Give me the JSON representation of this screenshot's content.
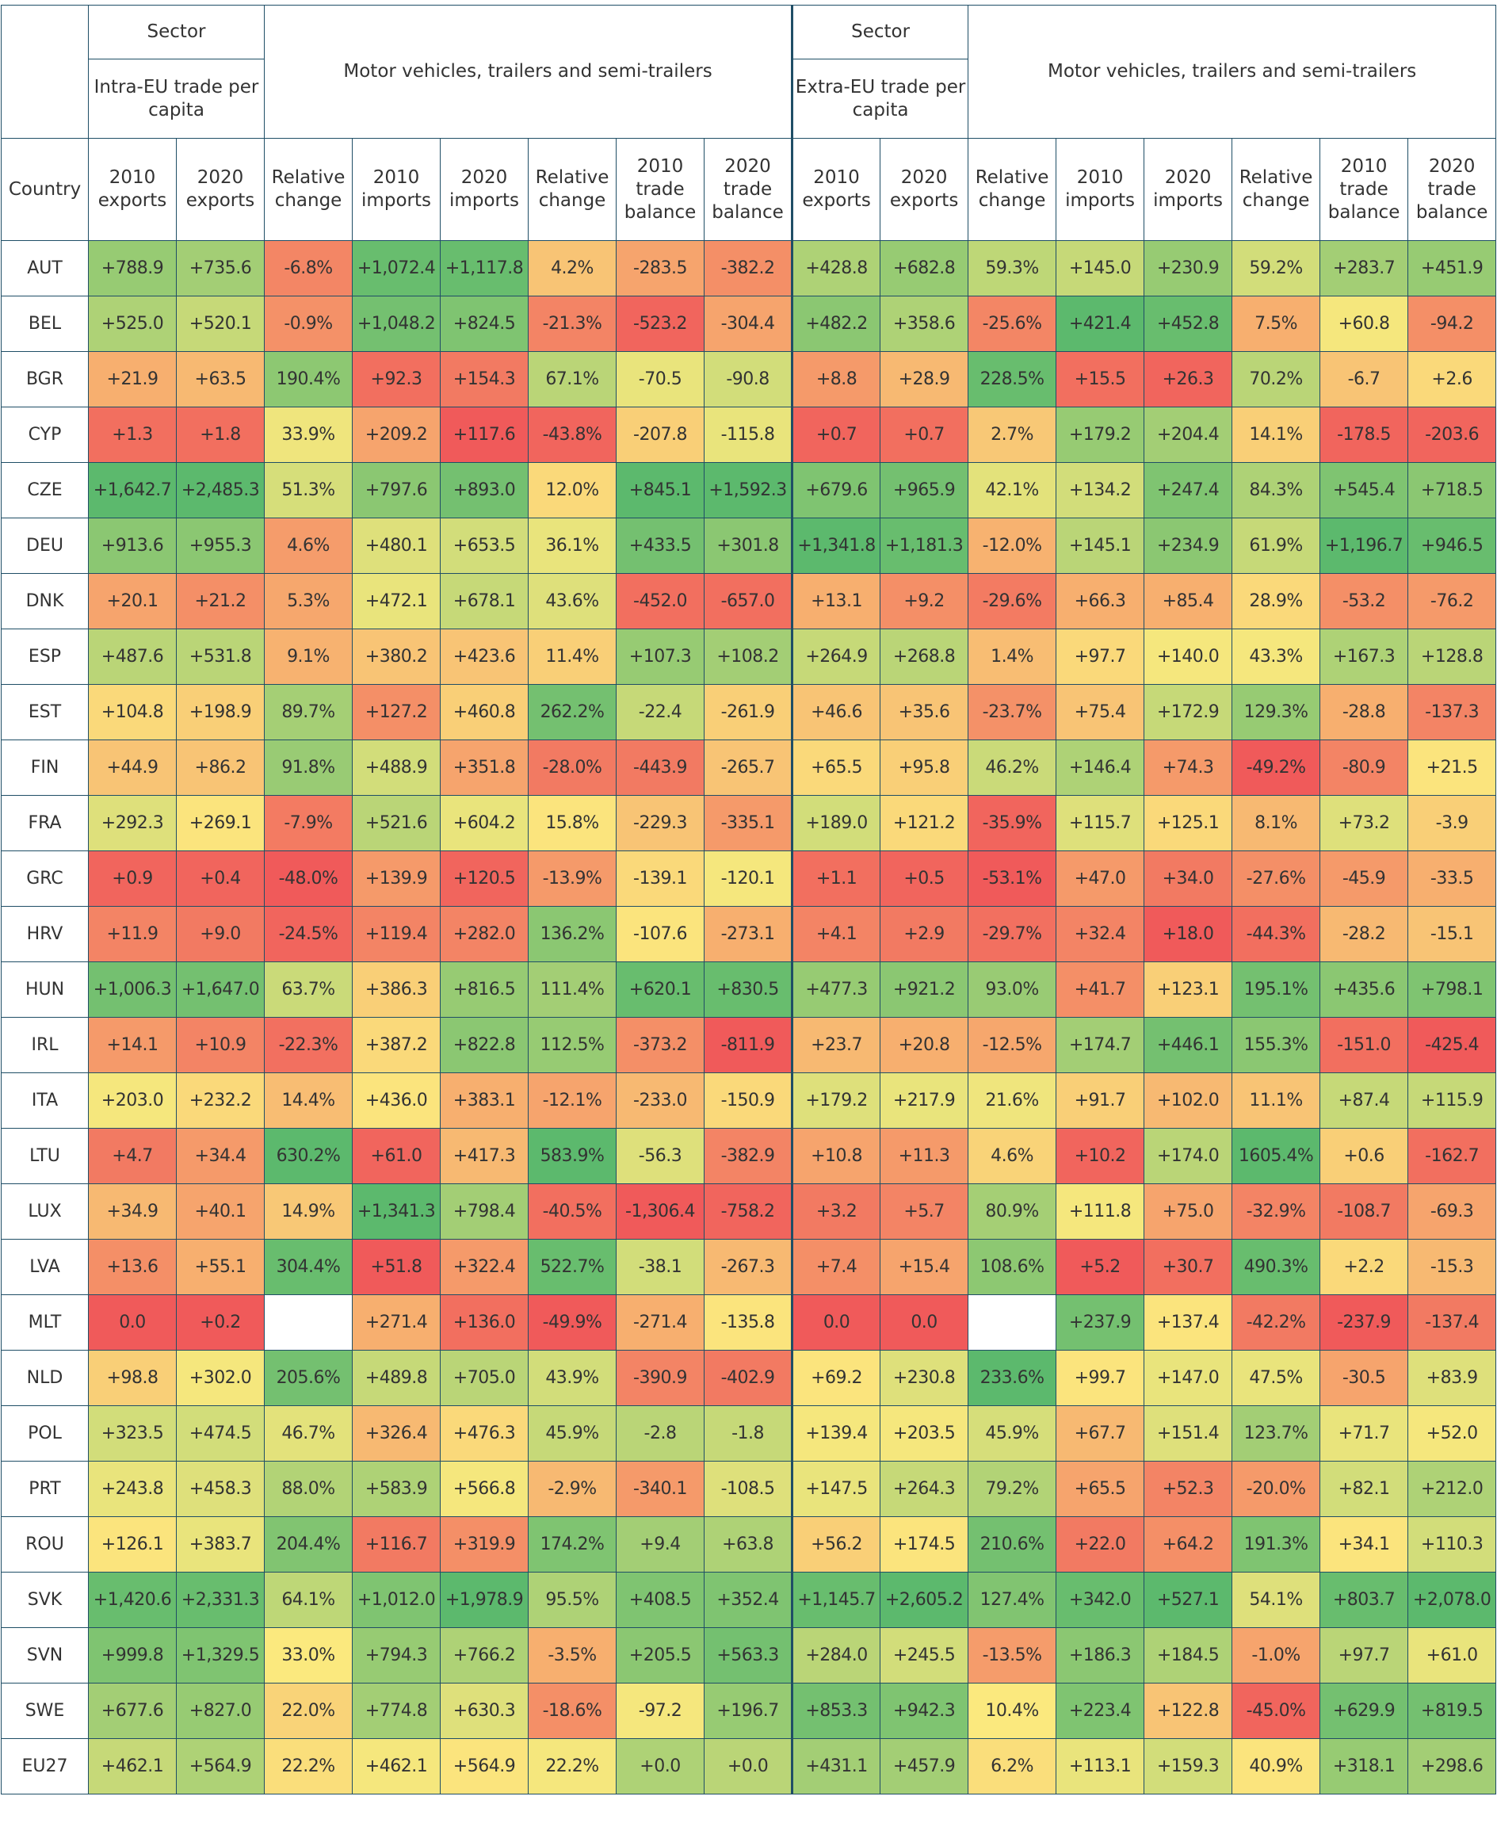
{
  "header": {
    "sector_label": "Sector",
    "intra_group_label": "Intra-EU trade per capita",
    "extra_group_label": "Extra-EU trade per capita",
    "industry_label": "Motor vehicles, trailers and semi-trailers",
    "columns": {
      "country": "Country",
      "exp2010": "2010 exports",
      "exp2020": "2020 exports",
      "rel_change": "Relative change",
      "imp2010": "2010 imports",
      "imp2020": "2020 imports",
      "bal2010": "2010 trade balance",
      "bal2020": "2020 trade balance"
    }
  },
  "rows": [
    {
      "country": "AUT",
      "intra": [
        "+788.9",
        "+735.6",
        "-6.8%",
        "+1,072.4",
        "+1,117.8",
        "4.2%",
        "-283.5",
        "-382.2"
      ],
      "extra": [
        "+428.8",
        "+682.8",
        "59.3%",
        "+145.0",
        "+230.9",
        "59.2%",
        "+283.7",
        "+451.9"
      ]
    },
    {
      "country": "BEL",
      "intra": [
        "+525.0",
        "+520.1",
        "-0.9%",
        "+1,048.2",
        "+824.5",
        "-21.3%",
        "-523.2",
        "-304.4"
      ],
      "extra": [
        "+482.2",
        "+358.6",
        "-25.6%",
        "+421.4",
        "+452.8",
        "7.5%",
        "+60.8",
        "-94.2"
      ]
    },
    {
      "country": "BGR",
      "intra": [
        "+21.9",
        "+63.5",
        "190.4%",
        "+92.3",
        "+154.3",
        "67.1%",
        "-70.5",
        "-90.8"
      ],
      "extra": [
        "+8.8",
        "+28.9",
        "228.5%",
        "+15.5",
        "+26.3",
        "70.2%",
        "-6.7",
        "+2.6"
      ]
    },
    {
      "country": "CYP",
      "intra": [
        "+1.3",
        "+1.8",
        "33.9%",
        "+209.2",
        "+117.6",
        "-43.8%",
        "-207.8",
        "-115.8"
      ],
      "extra": [
        "+0.7",
        "+0.7",
        "2.7%",
        "+179.2",
        "+204.4",
        "14.1%",
        "-178.5",
        "-203.6"
      ]
    },
    {
      "country": "CZE",
      "intra": [
        "+1,642.7",
        "+2,485.3",
        "51.3%",
        "+797.6",
        "+893.0",
        "12.0%",
        "+845.1",
        "+1,592.3"
      ],
      "extra": [
        "+679.6",
        "+965.9",
        "42.1%",
        "+134.2",
        "+247.4",
        "84.3%",
        "+545.4",
        "+718.5"
      ]
    },
    {
      "country": "DEU",
      "intra": [
        "+913.6",
        "+955.3",
        "4.6%",
        "+480.1",
        "+653.5",
        "36.1%",
        "+433.5",
        "+301.8"
      ],
      "extra": [
        "+1,341.8",
        "+1,181.3",
        "-12.0%",
        "+145.1",
        "+234.9",
        "61.9%",
        "+1,196.7",
        "+946.5"
      ]
    },
    {
      "country": "DNK",
      "intra": [
        "+20.1",
        "+21.2",
        "5.3%",
        "+472.1",
        "+678.1",
        "43.6%",
        "-452.0",
        "-657.0"
      ],
      "extra": [
        "+13.1",
        "+9.2",
        "-29.6%",
        "+66.3",
        "+85.4",
        "28.9%",
        "-53.2",
        "-76.2"
      ]
    },
    {
      "country": "ESP",
      "intra": [
        "+487.6",
        "+531.8",
        "9.1%",
        "+380.2",
        "+423.6",
        "11.4%",
        "+107.3",
        "+108.2"
      ],
      "extra": [
        "+264.9",
        "+268.8",
        "1.4%",
        "+97.7",
        "+140.0",
        "43.3%",
        "+167.3",
        "+128.8"
      ]
    },
    {
      "country": "EST",
      "intra": [
        "+104.8",
        "+198.9",
        "89.7%",
        "+127.2",
        "+460.8",
        "262.2%",
        "-22.4",
        "-261.9"
      ],
      "extra": [
        "+46.6",
        "+35.6",
        "-23.7%",
        "+75.4",
        "+172.9",
        "129.3%",
        "-28.8",
        "-137.3"
      ]
    },
    {
      "country": "FIN",
      "intra": [
        "+44.9",
        "+86.2",
        "91.8%",
        "+488.9",
        "+351.8",
        "-28.0%",
        "-443.9",
        "-265.7"
      ],
      "extra": [
        "+65.5",
        "+95.8",
        "46.2%",
        "+146.4",
        "+74.3",
        "-49.2%",
        "-80.9",
        "+21.5"
      ]
    },
    {
      "country": "FRA",
      "intra": [
        "+292.3",
        "+269.1",
        "-7.9%",
        "+521.6",
        "+604.2",
        "15.8%",
        "-229.3",
        "-335.1"
      ],
      "extra": [
        "+189.0",
        "+121.2",
        "-35.9%",
        "+115.7",
        "+125.1",
        "8.1%",
        "+73.2",
        "-3.9"
      ]
    },
    {
      "country": "GRC",
      "intra": [
        "+0.9",
        "+0.4",
        "-48.0%",
        "+139.9",
        "+120.5",
        "-13.9%",
        "-139.1",
        "-120.1"
      ],
      "extra": [
        "+1.1",
        "+0.5",
        "-53.1%",
        "+47.0",
        "+34.0",
        "-27.6%",
        "-45.9",
        "-33.5"
      ]
    },
    {
      "country": "HRV",
      "intra": [
        "+11.9",
        "+9.0",
        "-24.5%",
        "+119.4",
        "+282.0",
        "136.2%",
        "-107.6",
        "-273.1"
      ],
      "extra": [
        "+4.1",
        "+2.9",
        "-29.7%",
        "+32.4",
        "+18.0",
        "-44.3%",
        "-28.2",
        "-15.1"
      ]
    },
    {
      "country": "HUN",
      "intra": [
        "+1,006.3",
        "+1,647.0",
        "63.7%",
        "+386.3",
        "+816.5",
        "111.4%",
        "+620.1",
        "+830.5"
      ],
      "extra": [
        "+477.3",
        "+921.2",
        "93.0%",
        "+41.7",
        "+123.1",
        "195.1%",
        "+435.6",
        "+798.1"
      ]
    },
    {
      "country": "IRL",
      "intra": [
        "+14.1",
        "+10.9",
        "-22.3%",
        "+387.2",
        "+822.8",
        "112.5%",
        "-373.2",
        "-811.9"
      ],
      "extra": [
        "+23.7",
        "+20.8",
        "-12.5%",
        "+174.7",
        "+446.1",
        "155.3%",
        "-151.0",
        "-425.4"
      ]
    },
    {
      "country": "ITA",
      "intra": [
        "+203.0",
        "+232.2",
        "14.4%",
        "+436.0",
        "+383.1",
        "-12.1%",
        "-233.0",
        "-150.9"
      ],
      "extra": [
        "+179.2",
        "+217.9",
        "21.6%",
        "+91.7",
        "+102.0",
        "11.1%",
        "+87.4",
        "+115.9"
      ]
    },
    {
      "country": "LTU",
      "intra": [
        "+4.7",
        "+34.4",
        "630.2%",
        "+61.0",
        "+417.3",
        "583.9%",
        "-56.3",
        "-382.9"
      ],
      "extra": [
        "+10.8",
        "+11.3",
        "4.6%",
        "+10.2",
        "+174.0",
        "1605.4%",
        "+0.6",
        "-162.7"
      ]
    },
    {
      "country": "LUX",
      "intra": [
        "+34.9",
        "+40.1",
        "14.9%",
        "+1,341.3",
        "+798.4",
        "-40.5%",
        "-1,306.4",
        "-758.2"
      ],
      "extra": [
        "+3.2",
        "+5.7",
        "80.9%",
        "+111.8",
        "+75.0",
        "-32.9%",
        "-108.7",
        "-69.3"
      ]
    },
    {
      "country": "LVA",
      "intra": [
        "+13.6",
        "+55.1",
        "304.4%",
        "+51.8",
        "+322.4",
        "522.7%",
        "-38.1",
        "-267.3"
      ],
      "extra": [
        "+7.4",
        "+15.4",
        "108.6%",
        "+5.2",
        "+30.7",
        "490.3%",
        "+2.2",
        "-15.3"
      ]
    },
    {
      "country": "MLT",
      "intra": [
        "0.0",
        "+0.2",
        "",
        "+271.4",
        "+136.0",
        "-49.9%",
        "-271.4",
        "-135.8"
      ],
      "extra": [
        "0.0",
        "0.0",
        "",
        "+237.9",
        "+137.4",
        "-42.2%",
        "-237.9",
        "-137.4"
      ]
    },
    {
      "country": "NLD",
      "intra": [
        "+98.8",
        "+302.0",
        "205.6%",
        "+489.8",
        "+705.0",
        "43.9%",
        "-390.9",
        "-402.9"
      ],
      "extra": [
        "+69.2",
        "+230.8",
        "233.6%",
        "+99.7",
        "+147.0",
        "47.5%",
        "-30.5",
        "+83.9"
      ]
    },
    {
      "country": "POL",
      "intra": [
        "+323.5",
        "+474.5",
        "46.7%",
        "+326.4",
        "+476.3",
        "45.9%",
        "-2.8",
        "-1.8"
      ],
      "extra": [
        "+139.4",
        "+203.5",
        "45.9%",
        "+67.7",
        "+151.4",
        "123.7%",
        "+71.7",
        "+52.0"
      ]
    },
    {
      "country": "PRT",
      "intra": [
        "+243.8",
        "+458.3",
        "88.0%",
        "+583.9",
        "+566.8",
        "-2.9%",
        "-340.1",
        "-108.5"
      ],
      "extra": [
        "+147.5",
        "+264.3",
        "79.2%",
        "+65.5",
        "+52.3",
        "-20.0%",
        "+82.1",
        "+212.0"
      ]
    },
    {
      "country": "ROU",
      "intra": [
        "+126.1",
        "+383.7",
        "204.4%",
        "+116.7",
        "+319.9",
        "174.2%",
        "+9.4",
        "+63.8"
      ],
      "extra": [
        "+56.2",
        "+174.5",
        "210.6%",
        "+22.0",
        "+64.2",
        "191.3%",
        "+34.1",
        "+110.3"
      ]
    },
    {
      "country": "SVK",
      "intra": [
        "+1,420.6",
        "+2,331.3",
        "64.1%",
        "+1,012.0",
        "+1,978.9",
        "95.5%",
        "+408.5",
        "+352.4"
      ],
      "extra": [
        "+1,145.7",
        "+2,605.2",
        "127.4%",
        "+342.0",
        "+527.1",
        "54.1%",
        "+803.7",
        "+2,078.0"
      ]
    },
    {
      "country": "SVN",
      "intra": [
        "+999.8",
        "+1,329.5",
        "33.0%",
        "+794.3",
        "+766.2",
        "-3.5%",
        "+205.5",
        "+563.3"
      ],
      "extra": [
        "+284.0",
        "+245.5",
        "-13.5%",
        "+186.3",
        "+184.5",
        "-1.0%",
        "+97.7",
        "+61.0"
      ]
    },
    {
      "country": "SWE",
      "intra": [
        "+677.6",
        "+827.0",
        "22.0%",
        "+774.8",
        "+630.3",
        "-18.6%",
        "-97.2",
        "+196.7"
      ],
      "extra": [
        "+853.3",
        "+942.3",
        "10.4%",
        "+223.4",
        "+122.8",
        "-45.0%",
        "+629.9",
        "+819.5"
      ]
    },
    {
      "country": "EU27",
      "intra": [
        "+462.1",
        "+564.9",
        "22.2%",
        "+462.1",
        "+564.9",
        "22.2%",
        "+0.0",
        "+0.0"
      ],
      "extra": [
        "+431.1",
        "+457.9",
        "6.2%",
        "+113.1",
        "+159.3",
        "40.9%",
        "+318.1",
        "+298.6"
      ]
    }
  ],
  "colors": {
    "low": "#f05a5a",
    "mid": "#fbe97e",
    "high": "#5cb96d",
    "blank": "#ffffff",
    "border": "#1f4e66"
  }
}
